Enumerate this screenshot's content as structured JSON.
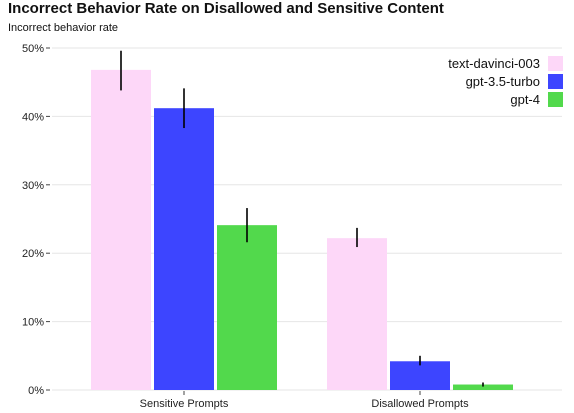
{
  "chart_data": {
    "type": "bar",
    "title": "Incorrect Behavior Rate on Disallowed and Sensitive Content",
    "ylabel": "Incorrect behavior rate",
    "xlabel": "",
    "categories": [
      "Sensitive Prompts",
      "Disallowed Prompts"
    ],
    "ylim": [
      0,
      0.5
    ],
    "y_ticks": [
      0,
      0.1,
      0.2,
      0.3,
      0.4,
      0.5
    ],
    "y_tick_labels": [
      "0%",
      "10%",
      "20%",
      "30%",
      "40%",
      "50%"
    ],
    "grid": "horizontal",
    "legend_position": "top-right",
    "series": [
      {
        "name": "text-davinci-003",
        "color": "#fdd7f8",
        "values": [
          0.468,
          0.222
        ],
        "error_low": [
          0.438,
          0.209
        ],
        "error_high": [
          0.496,
          0.237
        ]
      },
      {
        "name": "gpt-3.5-turbo",
        "color": "#3d45ff",
        "values": [
          0.412,
          0.042
        ],
        "error_low": [
          0.383,
          0.036
        ],
        "error_high": [
          0.441,
          0.05
        ]
      },
      {
        "name": "gpt-4",
        "color": "#52d94c",
        "values": [
          0.241,
          0.008
        ],
        "error_low": [
          0.216,
          0.005
        ],
        "error_high": [
          0.266,
          0.011
        ]
      }
    ]
  }
}
